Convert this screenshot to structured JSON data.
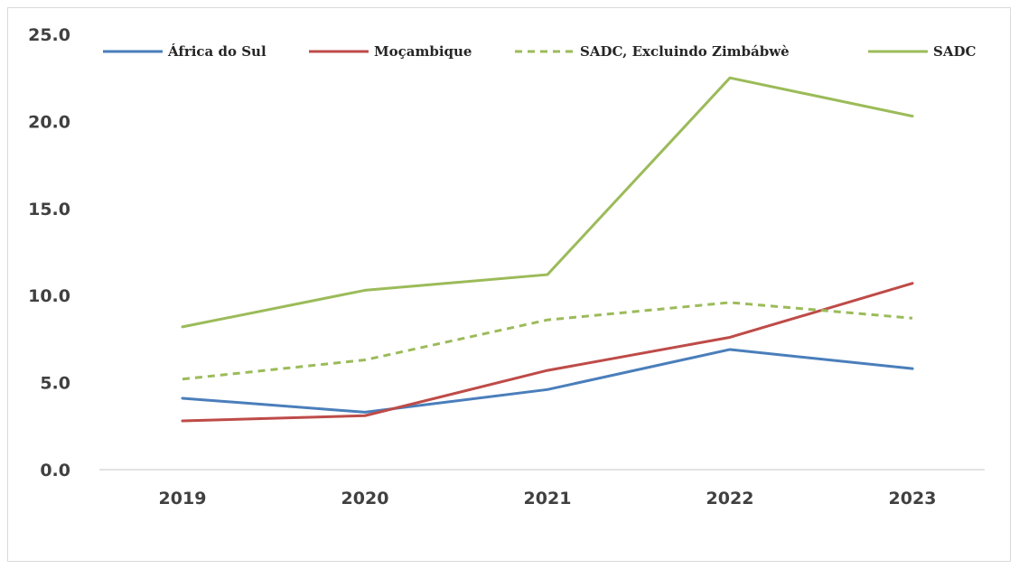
{
  "chart_data": {
    "type": "line",
    "categories": [
      "2019",
      "2020",
      "2021",
      "2022",
      "2023"
    ],
    "ylim": [
      0,
      25
    ],
    "y_ticks": [
      "0.0",
      "5.0",
      "10.0",
      "15.0",
      "20.0",
      "25.0"
    ],
    "grid": false,
    "legend_position": "top",
    "series": [
      {
        "name": "África do Sul",
        "color": "#4a7ebb",
        "dash": "solid",
        "values": [
          4.1,
          3.3,
          4.6,
          6.9,
          5.8
        ]
      },
      {
        "name": "Moçambique",
        "color": "#be4b48",
        "dash": "solid",
        "values": [
          2.8,
          3.1,
          5.7,
          7.6,
          10.7
        ]
      },
      {
        "name": "SADC, Excluindo Zimbábwè",
        "color": "#9bbb59",
        "dash": "dashed",
        "values": [
          5.2,
          6.3,
          8.6,
          9.6,
          8.7
        ]
      },
      {
        "name": "SADC",
        "color": "#9bbb59",
        "dash": "solid",
        "values": [
          8.2,
          10.3,
          11.2,
          22.5,
          20.3
        ]
      }
    ]
  }
}
